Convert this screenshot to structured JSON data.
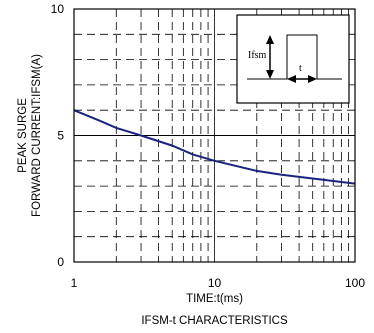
{
  "chart_data": {
    "type": "line",
    "title": "IFSM-t CHARACTERISTICS",
    "xlabel": "TIME:t(ms)",
    "ylabel_lines": [
      "PEAK SURGE",
      "FORWARD CURRENT:IFSM(A)"
    ],
    "xscale": "log",
    "xlim": [
      1,
      100
    ],
    "ylim": [
      0,
      10
    ],
    "x_ticks": [
      {
        "value": 1,
        "label": "1"
      },
      {
        "value": 10,
        "label": "10"
      },
      {
        "value": 100,
        "label": "100"
      }
    ],
    "y_ticks": [
      {
        "value": 0,
        "label": "0"
      },
      {
        "value": 5,
        "label": "5"
      },
      {
        "value": 10,
        "label": "10"
      }
    ],
    "grid": true,
    "series": [
      {
        "color": "#1a237e",
        "x": [
          1,
          1.5,
          2,
          3,
          5,
          7,
          10,
          20,
          30,
          50,
          70,
          100
        ],
        "y": [
          6.0,
          5.6,
          5.3,
          5.0,
          4.6,
          4.25,
          4.0,
          3.6,
          3.45,
          3.3,
          3.2,
          3.1
        ]
      }
    ],
    "inset": {
      "current_label": "Ifsm",
      "time_label": "t"
    }
  }
}
